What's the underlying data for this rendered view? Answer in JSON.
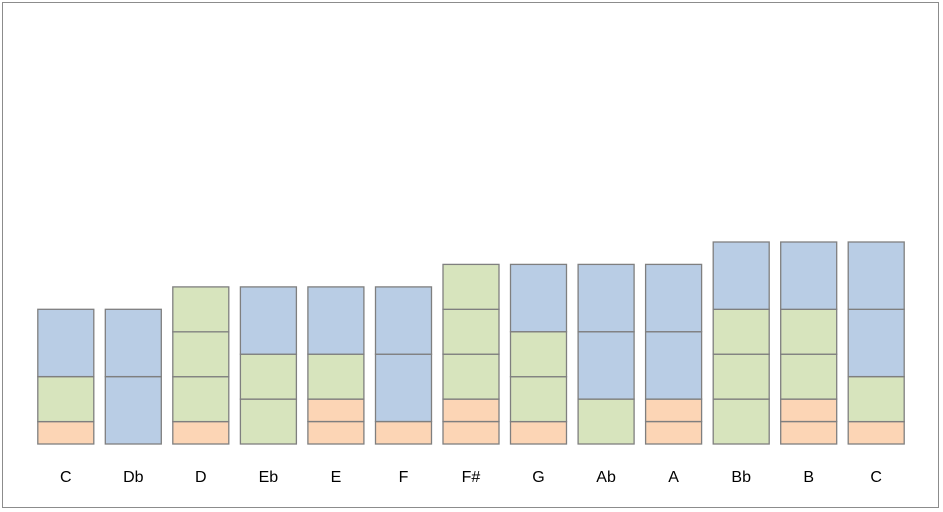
{
  "chart_data": {
    "type": "bar",
    "stacked": true,
    "title": "",
    "xlabel": "",
    "ylabel": "",
    "grid": false,
    "legend": "none",
    "categories": [
      "C",
      "Db",
      "D",
      "Eb",
      "E",
      "F",
      "F#",
      "G",
      "Ab",
      "A",
      "Bb",
      "B",
      "C"
    ],
    "segment_types": {
      "1": {
        "color": "#fcd5b5"
      },
      "2": {
        "color": "#d7e4bd"
      },
      "3": {
        "color": "#b9cde5"
      }
    },
    "stacks": [
      [
        1,
        2,
        3
      ],
      [
        3,
        3
      ],
      [
        1,
        2,
        2,
        2
      ],
      [
        2,
        2,
        3
      ],
      [
        1,
        1,
        2,
        3
      ],
      [
        1,
        3,
        3
      ],
      [
        1,
        1,
        2,
        2,
        2
      ],
      [
        1,
        2,
        2,
        3
      ],
      [
        2,
        3,
        3
      ],
      [
        1,
        1,
        3,
        3
      ],
      [
        2,
        2,
        2,
        3
      ],
      [
        1,
        1,
        2,
        2,
        3
      ],
      [
        1,
        2,
        3,
        3
      ]
    ],
    "ylim": [
      0,
      18
    ]
  }
}
